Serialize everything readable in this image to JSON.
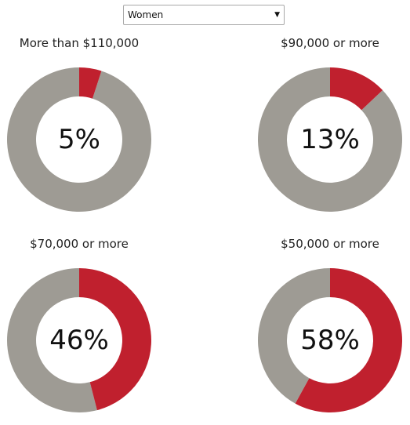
{
  "filter": {
    "selected": "Women"
  },
  "colors": {
    "share": "#c0202e",
    "rest": "#9e9b94"
  },
  "chart_data": [
    {
      "type": "pie",
      "title": "More than $110,000",
      "value": 5,
      "label": "5%"
    },
    {
      "type": "pie",
      "title": "$90,000 or more",
      "value": 13,
      "label": "13%"
    },
    {
      "type": "pie",
      "title": "$70,000 or more",
      "value": 46,
      "label": "46%"
    },
    {
      "type": "pie",
      "title": "$50,000 or more",
      "value": 58,
      "label": "58%"
    }
  ]
}
